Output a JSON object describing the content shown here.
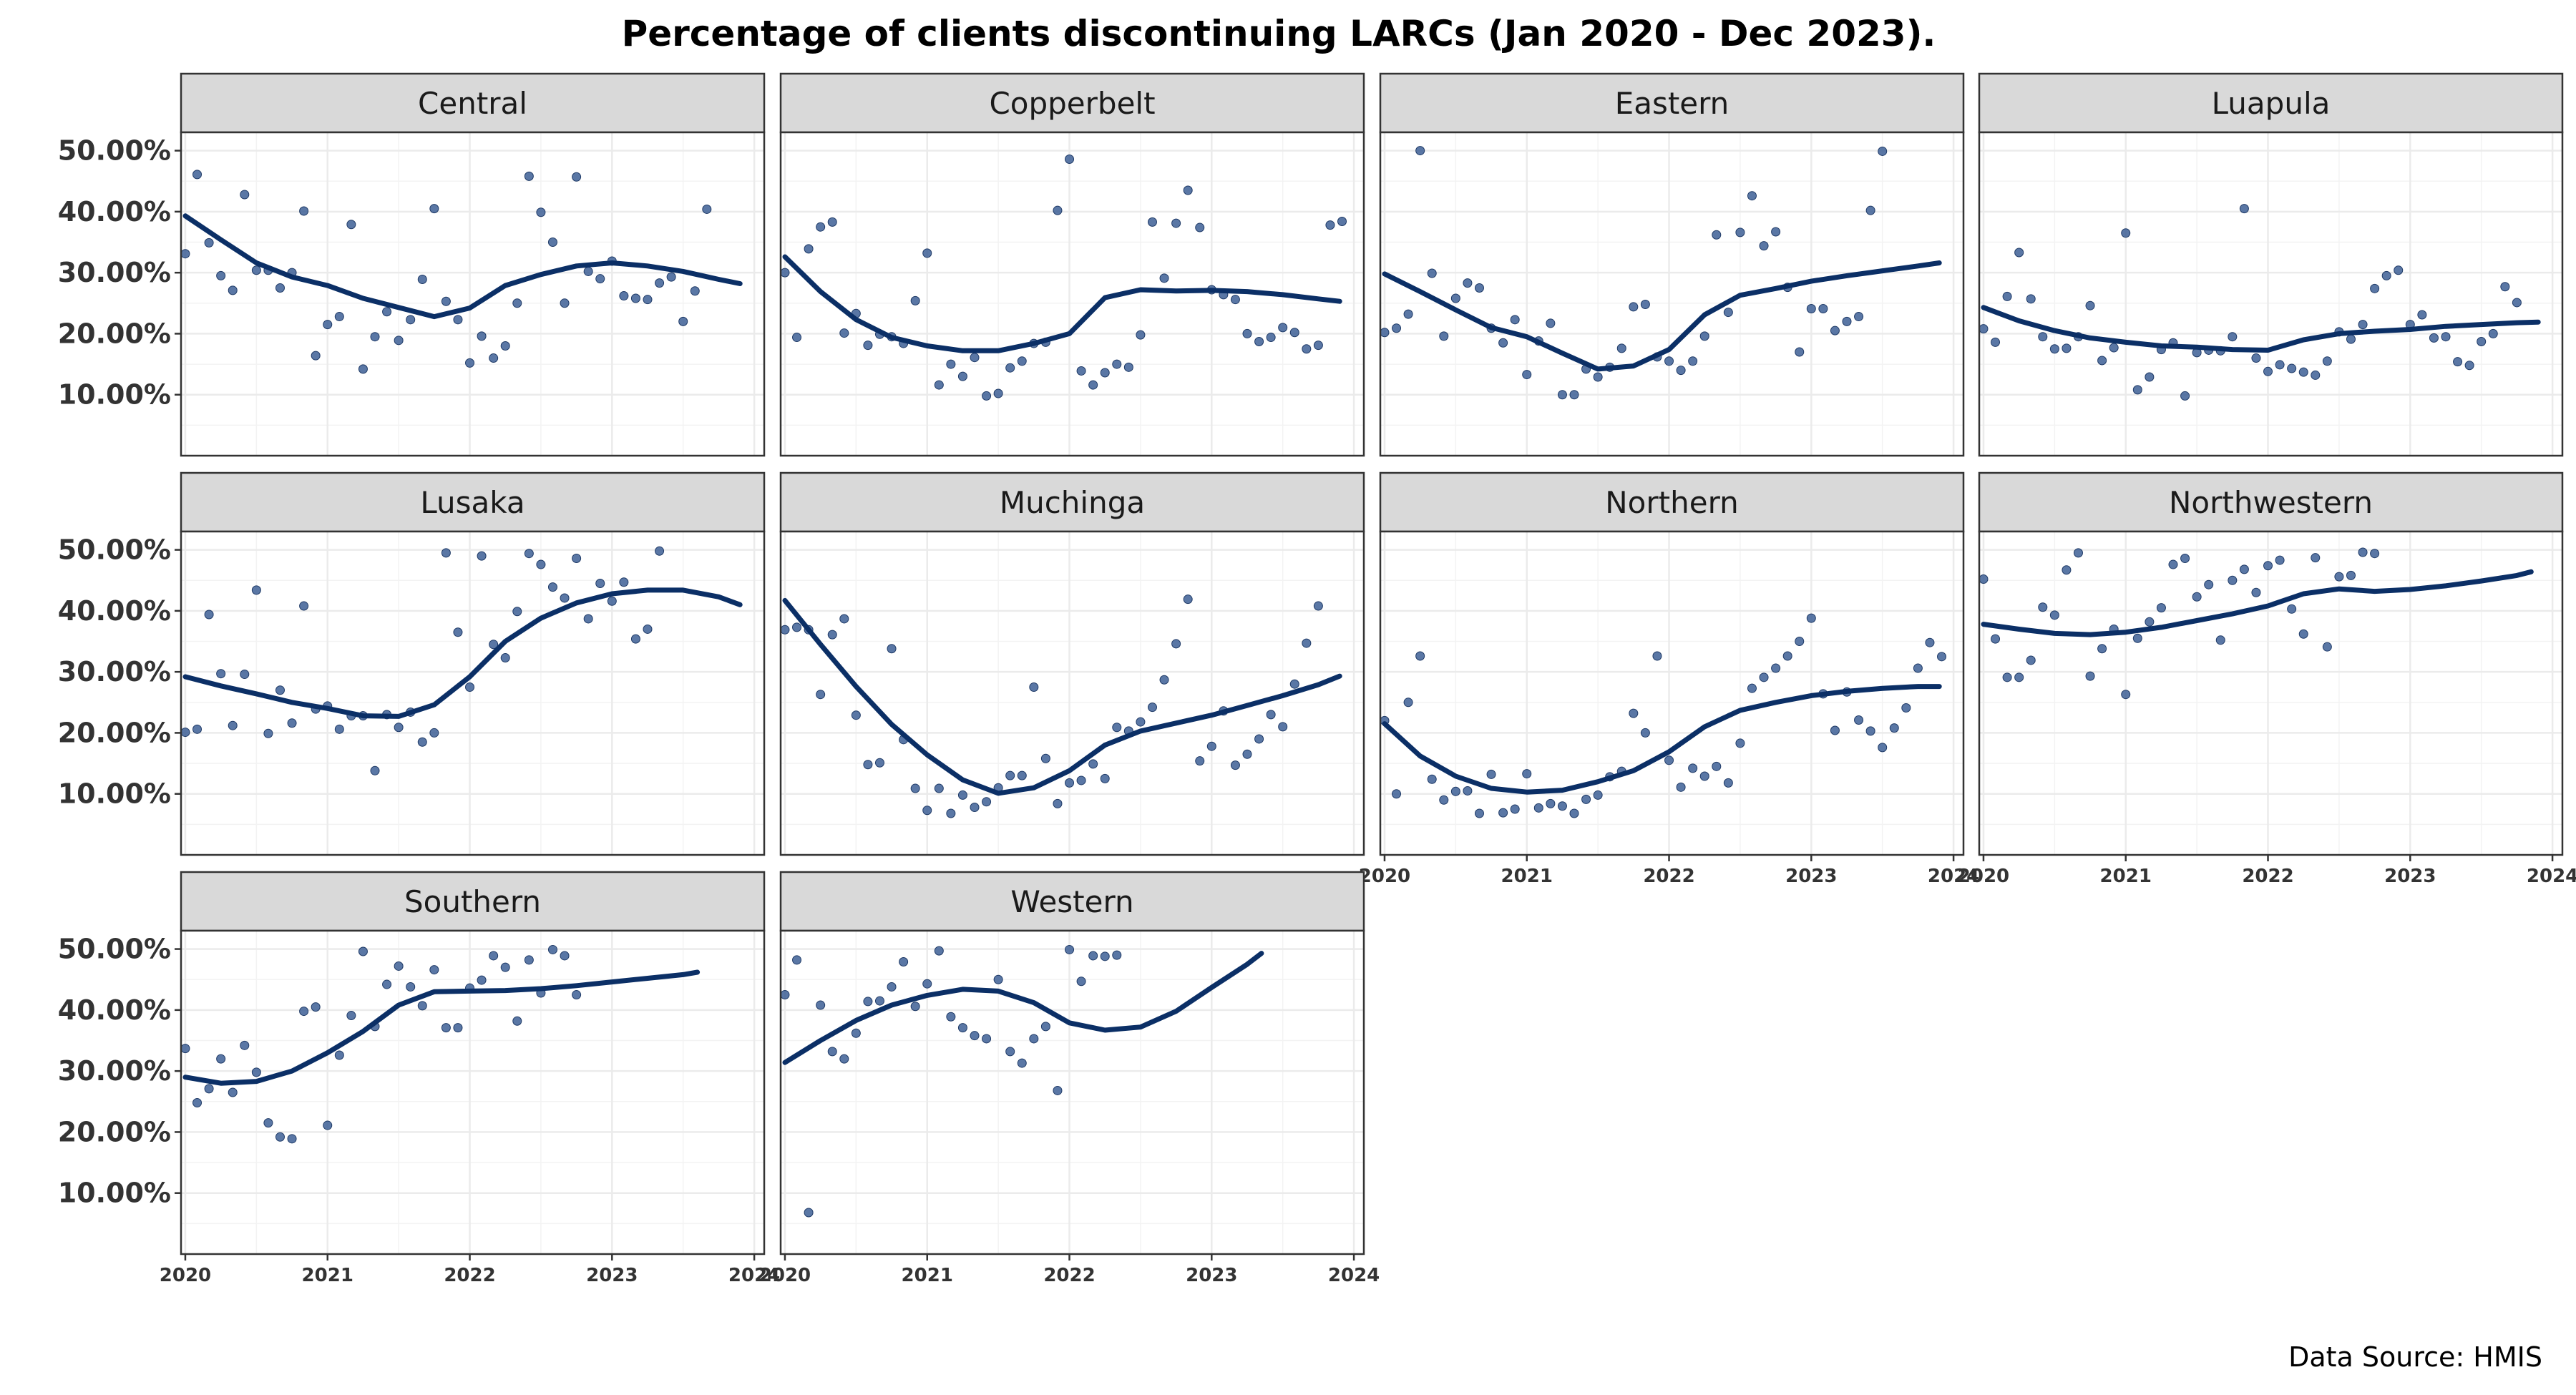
{
  "chart_data": {
    "type": "scatter",
    "title": "Percentage of clients discontinuing LARCs (Jan 2020 - Dec 2023).",
    "caption": "Data Source: HMIS",
    "xlabel": "",
    "ylabel": "",
    "xlim": [
      2019.97,
      2024.07
    ],
    "ylim": [
      0,
      53
    ],
    "x_ticks": [
      "2020",
      "2021",
      "2022",
      "2023",
      "2024"
    ],
    "y_ticks": [
      "10.00%",
      "20.00%",
      "30.00%",
      "40.00%",
      "50.00%"
    ],
    "grid": true,
    "colors": {
      "points": "#3d5f95",
      "trend": "#0b2f66",
      "strip_bg": "#d9d9d9",
      "grid": "#ebebeb",
      "panel_border": "#333333"
    },
    "facets": [
      {
        "name": "Central",
        "points": [
          33.1,
          46.1,
          34.9,
          29.5,
          27.1,
          42.8,
          30.4,
          30.4,
          27.5,
          30.0,
          40.1,
          16.4,
          21.5,
          22.8,
          37.9,
          14.2,
          19.5,
          23.6,
          18.9,
          22.3,
          28.9,
          40.5,
          25.3,
          22.3,
          15.2,
          19.6,
          16.0,
          18.0,
          25.0,
          45.8,
          39.9,
          35.0,
          25.0,
          45.7,
          30.2,
          29.0,
          31.9,
          26.2,
          25.8,
          25.6,
          28.3,
          29.3,
          22.0,
          27.0,
          40.4
        ],
        "trend": [
          [
            2020.0,
            39.3
          ],
          [
            2020.25,
            35.4
          ],
          [
            2020.5,
            31.6
          ],
          [
            2020.75,
            29.3
          ],
          [
            2021.0,
            27.9
          ],
          [
            2021.25,
            25.8
          ],
          [
            2021.5,
            24.3
          ],
          [
            2021.75,
            22.8
          ],
          [
            2022.0,
            24.2
          ],
          [
            2022.25,
            27.9
          ],
          [
            2022.5,
            29.7
          ],
          [
            2022.75,
            31.1
          ],
          [
            2023.0,
            31.6
          ],
          [
            2023.25,
            31.1
          ],
          [
            2023.5,
            30.2
          ],
          [
            2023.75,
            28.9
          ],
          [
            2023.9,
            28.2
          ]
        ]
      },
      {
        "name": "Copperbelt",
        "points": [
          30.0,
          19.4,
          33.9,
          37.5,
          38.3,
          20.1,
          23.3,
          18.1,
          19.9,
          19.5,
          18.4,
          25.4,
          33.2,
          11.6,
          15.0,
          13.0,
          16.1,
          9.8,
          10.2,
          14.4,
          15.5,
          18.4,
          18.6,
          40.2,
          48.6,
          13.9,
          11.6,
          13.6,
          15.0,
          14.5,
          19.8,
          38.3,
          29.1,
          38.1,
          43.5,
          37.4,
          27.2,
          26.4,
          25.6,
          20.0,
          18.7,
          19.4,
          21.0,
          20.2,
          17.5,
          18.1,
          37.8,
          38.4
        ],
        "trend": [
          [
            2020.0,
            32.6
          ],
          [
            2020.25,
            26.9
          ],
          [
            2020.5,
            22.3
          ],
          [
            2020.75,
            19.4
          ],
          [
            2021.0,
            18.0
          ],
          [
            2021.25,
            17.2
          ],
          [
            2021.5,
            17.2
          ],
          [
            2021.75,
            18.4
          ],
          [
            2022.0,
            20.0
          ],
          [
            2022.25,
            25.9
          ],
          [
            2022.5,
            27.2
          ],
          [
            2022.75,
            27.0
          ],
          [
            2023.0,
            27.1
          ],
          [
            2023.25,
            26.9
          ],
          [
            2023.5,
            26.4
          ],
          [
            2023.75,
            25.7
          ],
          [
            2023.9,
            25.3
          ]
        ]
      },
      {
        "name": "Eastern",
        "points": [
          20.2,
          20.9,
          23.2,
          50.0,
          29.9,
          19.6,
          25.8,
          28.3,
          27.5,
          20.9,
          18.5,
          22.3,
          13.3,
          18.8,
          21.7,
          10.0,
          10.0,
          14.2,
          12.9,
          14.5,
          17.6,
          24.4,
          24.8,
          16.2,
          15.5,
          14.0,
          15.5,
          19.6,
          36.2,
          23.5,
          36.6,
          42.6,
          34.4,
          36.7,
          27.6,
          17.0,
          24.1,
          24.1,
          20.5,
          22.0,
          22.8,
          40.2,
          49.9
        ],
        "trend": [
          [
            2020.0,
            29.8
          ],
          [
            2020.25,
            26.9
          ],
          [
            2020.5,
            23.9
          ],
          [
            2020.75,
            21.0
          ],
          [
            2021.0,
            19.5
          ],
          [
            2021.25,
            16.8
          ],
          [
            2021.5,
            14.2
          ],
          [
            2021.75,
            14.7
          ],
          [
            2022.0,
            17.4
          ],
          [
            2022.25,
            23.1
          ],
          [
            2022.5,
            26.3
          ],
          [
            2022.75,
            27.4
          ],
          [
            2023.0,
            28.6
          ],
          [
            2023.25,
            29.5
          ],
          [
            2023.5,
            30.3
          ],
          [
            2023.75,
            31.1
          ],
          [
            2023.9,
            31.6
          ]
        ]
      },
      {
        "name": "Luapula",
        "points": [
          20.8,
          18.6,
          26.1,
          33.3,
          25.7,
          19.5,
          17.5,
          17.6,
          19.5,
          24.6,
          15.6,
          17.7,
          36.5,
          10.8,
          12.9,
          17.4,
          18.5,
          9.8,
          16.9,
          17.3,
          17.2,
          19.5,
          40.5,
          16.0,
          13.8,
          14.9,
          14.3,
          13.7,
          13.2,
          15.5,
          20.3,
          19.1,
          21.5,
          27.4,
          29.5,
          30.4,
          21.5,
          23.1,
          19.3,
          19.5,
          15.4,
          14.8,
          18.7,
          20.0,
          27.7,
          25.1
        ],
        "trend": [
          [
            2020.0,
            24.3
          ],
          [
            2020.25,
            22.1
          ],
          [
            2020.5,
            20.5
          ],
          [
            2020.75,
            19.3
          ],
          [
            2021.0,
            18.6
          ],
          [
            2021.25,
            18.0
          ],
          [
            2021.5,
            17.8
          ],
          [
            2021.75,
            17.4
          ],
          [
            2022.0,
            17.3
          ],
          [
            2022.25,
            19.0
          ],
          [
            2022.5,
            20.0
          ],
          [
            2022.75,
            20.4
          ],
          [
            2023.0,
            20.7
          ],
          [
            2023.25,
            21.2
          ],
          [
            2023.5,
            21.5
          ],
          [
            2023.75,
            21.8
          ],
          [
            2023.9,
            21.9
          ]
        ]
      },
      {
        "name": "Lusaka",
        "points": [
          20.1,
          20.6,
          39.4,
          29.7,
          21.2,
          29.6,
          43.4,
          19.9,
          27.0,
          21.6,
          40.8,
          23.9,
          24.4,
          20.6,
          22.8,
          22.8,
          13.8,
          23.0,
          20.9,
          23.4,
          18.5,
          20.0,
          49.5,
          36.5,
          27.5,
          49.0,
          34.5,
          32.3,
          39.9,
          49.4,
          47.6,
          43.9,
          42.1,
          48.6,
          38.7,
          44.5,
          41.6,
          44.7,
          35.4,
          37.0,
          49.8
        ],
        "trend": [
          [
            2020.0,
            29.2
          ],
          [
            2020.25,
            27.7
          ],
          [
            2020.5,
            26.4
          ],
          [
            2020.75,
            25.0
          ],
          [
            2021.0,
            24.0
          ],
          [
            2021.25,
            22.8
          ],
          [
            2021.5,
            22.7
          ],
          [
            2021.75,
            24.6
          ],
          [
            2022.0,
            29.2
          ],
          [
            2022.25,
            35.0
          ],
          [
            2022.5,
            38.8
          ],
          [
            2022.75,
            41.3
          ],
          [
            2023.0,
            42.8
          ],
          [
            2023.25,
            43.4
          ],
          [
            2023.5,
            43.4
          ],
          [
            2023.75,
            42.3
          ],
          [
            2023.9,
            41.0
          ]
        ]
      },
      {
        "name": "Muchinga",
        "points": [
          36.9,
          37.3,
          36.9,
          26.3,
          36.1,
          38.7,
          22.9,
          14.8,
          15.1,
          33.8,
          18.9,
          10.9,
          7.3,
          10.9,
          6.8,
          9.8,
          7.8,
          8.7,
          11.0,
          13.0,
          13.0,
          27.5,
          15.8,
          8.4,
          11.8,
          12.2,
          14.9,
          12.5,
          20.9,
          20.3,
          21.8,
          24.2,
          28.7,
          34.6,
          41.9,
          15.4,
          17.8,
          23.6,
          14.7,
          16.5,
          19.0,
          23.0,
          21.0,
          28.0,
          34.7,
          40.8
        ],
        "trend": [
          [
            2020.0,
            41.7
          ],
          [
            2020.25,
            34.5
          ],
          [
            2020.5,
            27.6
          ],
          [
            2020.75,
            21.4
          ],
          [
            2021.0,
            16.4
          ],
          [
            2021.25,
            12.3
          ],
          [
            2021.5,
            10.1
          ],
          [
            2021.75,
            11.0
          ],
          [
            2022.0,
            13.8
          ],
          [
            2022.25,
            18.0
          ],
          [
            2022.5,
            20.3
          ],
          [
            2022.75,
            21.6
          ],
          [
            2023.0,
            22.9
          ],
          [
            2023.25,
            24.5
          ],
          [
            2023.5,
            26.1
          ],
          [
            2023.75,
            27.9
          ],
          [
            2023.9,
            29.3
          ]
        ]
      },
      {
        "name": "Northern",
        "points": [
          22.0,
          10.0,
          25.0,
          32.6,
          12.4,
          9.0,
          10.4,
          10.5,
          6.8,
          13.2,
          6.9,
          7.5,
          13.3,
          7.7,
          8.4,
          8.0,
          6.8,
          9.1,
          9.8,
          12.8,
          13.7,
          23.2,
          20.0,
          32.6,
          15.5,
          11.1,
          14.2,
          12.9,
          14.5,
          11.8,
          18.3,
          27.3,
          29.1,
          30.6,
          32.6,
          35.0,
          38.8,
          26.4,
          20.4,
          26.7,
          22.1,
          20.3,
          17.6,
          20.8,
          24.1,
          30.6,
          34.8,
          32.5
        ],
        "trend": [
          [
            2020.0,
            21.5
          ],
          [
            2020.25,
            16.2
          ],
          [
            2020.5,
            12.9
          ],
          [
            2020.75,
            10.9
          ],
          [
            2021.0,
            10.3
          ],
          [
            2021.25,
            10.6
          ],
          [
            2021.5,
            12.0
          ],
          [
            2021.75,
            13.8
          ],
          [
            2022.0,
            16.9
          ],
          [
            2022.25,
            21.0
          ],
          [
            2022.5,
            23.7
          ],
          [
            2022.75,
            25.0
          ],
          [
            2023.0,
            26.1
          ],
          [
            2023.25,
            26.8
          ],
          [
            2023.5,
            27.3
          ],
          [
            2023.75,
            27.6
          ],
          [
            2023.9,
            27.6
          ]
        ]
      },
      {
        "name": "Northwestern",
        "points": [
          45.2,
          35.4,
          29.1,
          29.1,
          31.9,
          40.6,
          39.3,
          46.7,
          49.5,
          29.3,
          33.8,
          37.0,
          26.3,
          35.5,
          38.2,
          40.5,
          47.6,
          48.6,
          42.3,
          44.3,
          35.2,
          45.0,
          46.8,
          43.0,
          47.4,
          48.3,
          40.3,
          36.2,
          48.7,
          34.1,
          45.6,
          45.8,
          49.6,
          49.4
        ],
        "trend": [
          [
            2020.0,
            37.8
          ],
          [
            2020.25,
            37.0
          ],
          [
            2020.5,
            36.3
          ],
          [
            2020.75,
            36.1
          ],
          [
            2021.0,
            36.5
          ],
          [
            2021.25,
            37.3
          ],
          [
            2021.5,
            38.4
          ],
          [
            2021.75,
            39.5
          ],
          [
            2022.0,
            40.8
          ],
          [
            2022.25,
            42.8
          ],
          [
            2022.5,
            43.6
          ],
          [
            2022.75,
            43.2
          ],
          [
            2023.0,
            43.5
          ],
          [
            2023.25,
            44.1
          ],
          [
            2023.5,
            44.9
          ],
          [
            2023.75,
            45.8
          ],
          [
            2023.85,
            46.4
          ]
        ]
      },
      {
        "name": "Southern",
        "points": [
          33.7,
          24.8,
          27.1,
          32.0,
          26.5,
          34.2,
          29.8,
          21.5,
          19.2,
          18.9,
          39.8,
          40.5,
          21.1,
          32.6,
          39.1,
          49.6,
          37.3,
          44.2,
          47.2,
          43.8,
          40.7,
          46.6,
          37.1,
          37.1,
          43.6,
          44.9,
          48.9,
          47.0,
          38.2,
          48.2,
          42.8,
          49.9,
          48.9,
          42.5
        ],
        "trend": [
          [
            2020.0,
            29.0
          ],
          [
            2020.25,
            28.0
          ],
          [
            2020.5,
            28.3
          ],
          [
            2020.75,
            30.0
          ],
          [
            2021.0,
            33.0
          ],
          [
            2021.25,
            36.5
          ],
          [
            2021.5,
            40.8
          ],
          [
            2021.75,
            43.0
          ],
          [
            2022.0,
            43.1
          ],
          [
            2022.25,
            43.2
          ],
          [
            2022.5,
            43.5
          ],
          [
            2022.75,
            44.0
          ],
          [
            2023.0,
            44.6
          ],
          [
            2023.25,
            45.2
          ],
          [
            2023.5,
            45.8
          ],
          [
            2023.6,
            46.2
          ]
        ]
      },
      {
        "name": "Western",
        "points": [
          42.5,
          48.2,
          6.8,
          40.8,
          33.2,
          32.0,
          36.2,
          41.4,
          41.5,
          43.8,
          47.9,
          40.6,
          44.3,
          49.7,
          38.9,
          37.1,
          35.8,
          35.3,
          45.0,
          33.2,
          31.3,
          35.3,
          37.3,
          26.8,
          49.9,
          44.7,
          48.9,
          48.8,
          49.0
        ],
        "trend": [
          [
            2020.0,
            31.4
          ],
          [
            2020.25,
            35.0
          ],
          [
            2020.5,
            38.3
          ],
          [
            2020.75,
            40.8
          ],
          [
            2021.0,
            42.4
          ],
          [
            2021.25,
            43.4
          ],
          [
            2021.5,
            43.1
          ],
          [
            2021.75,
            41.2
          ],
          [
            2022.0,
            37.9
          ],
          [
            2022.25,
            36.7
          ],
          [
            2022.5,
            37.2
          ],
          [
            2022.75,
            39.8
          ],
          [
            2023.0,
            43.7
          ],
          [
            2023.25,
            47.5
          ],
          [
            2023.35,
            49.3
          ]
        ]
      }
    ]
  }
}
